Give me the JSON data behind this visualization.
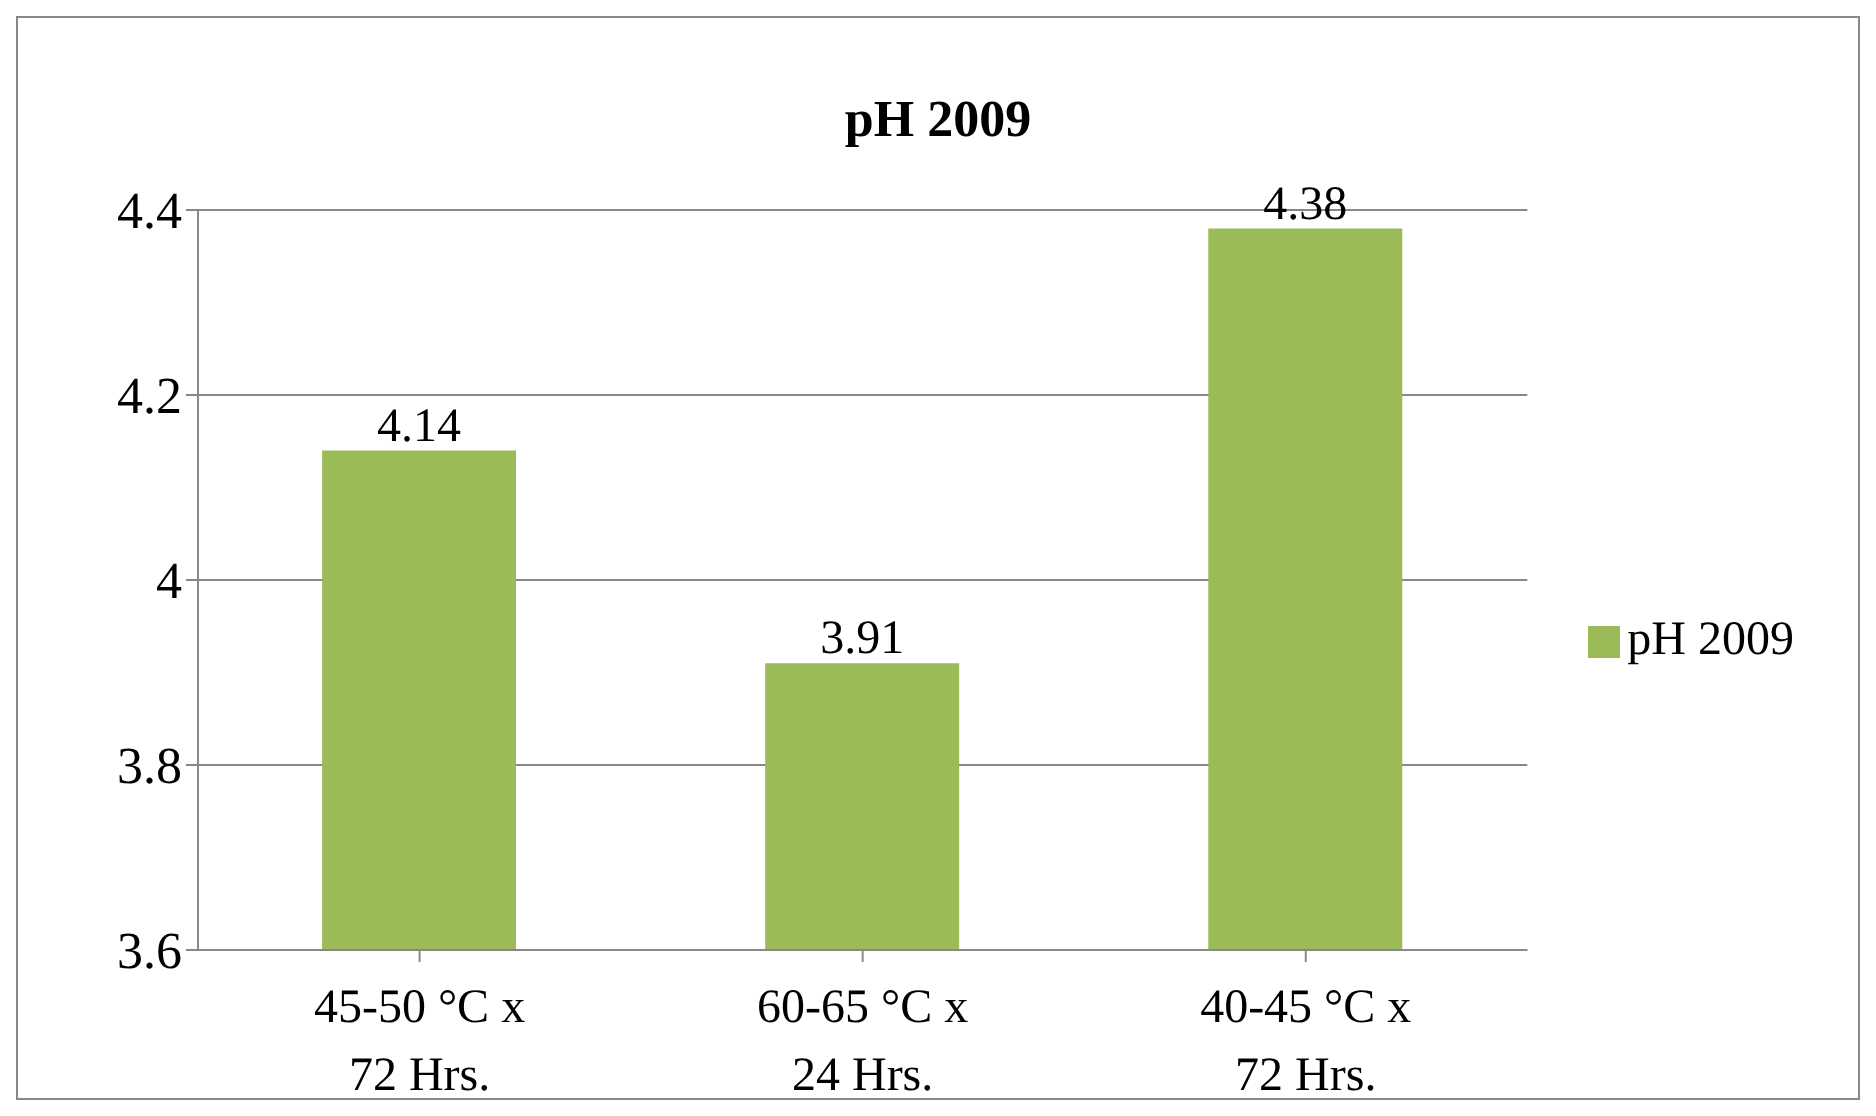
{
  "chart_data": {
    "type": "bar",
    "title": "pH 2009",
    "categories": [
      "45-50 °C x 72 Hrs.",
      "60-65 °C x 24 Hrs.",
      "40-45 °C x 72 Hrs."
    ],
    "series": [
      {
        "name": "pH 2009",
        "color": "#9bbb59",
        "values": [
          4.14,
          3.91,
          4.38
        ]
      }
    ],
    "ylim": [
      3.6,
      4.4
    ],
    "yticks": [
      3.6,
      3.8,
      4,
      4.2,
      4.4
    ],
    "grid": "y",
    "legend": "right",
    "data_labels": true
  }
}
